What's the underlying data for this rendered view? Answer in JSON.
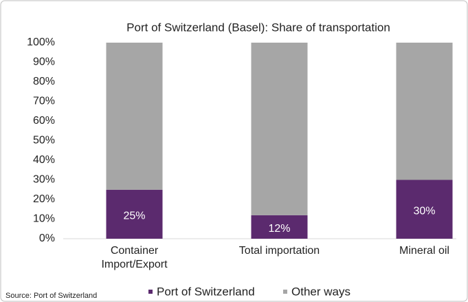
{
  "chart_data": {
    "type": "stacked_bar",
    "title": "Port of Switzerland (Basel): Share of transportation",
    "categories": [
      "Container Import/Export",
      "Total importation",
      "Mineral oil"
    ],
    "series": [
      {
        "name": "Port of Switzerland",
        "color": "#5b2a6e",
        "values": [
          25,
          12,
          30
        ],
        "value_labels": [
          "25%",
          "12%",
          "30%"
        ]
      },
      {
        "name": "Other ways",
        "color": "#a6a6a6",
        "values": [
          75,
          88,
          70
        ]
      }
    ],
    "ylim": [
      0,
      100
    ],
    "yticks": [
      {
        "value": 0,
        "label": "0%"
      },
      {
        "value": 10,
        "label": "10%"
      },
      {
        "value": 20,
        "label": "20%"
      },
      {
        "value": 30,
        "label": "30%"
      },
      {
        "value": 40,
        "label": "40%"
      },
      {
        "value": 50,
        "label": "50%"
      },
      {
        "value": 60,
        "label": "60%"
      },
      {
        "value": 70,
        "label": "70%"
      },
      {
        "value": 80,
        "label": "80%"
      },
      {
        "value": 90,
        "label": "90%"
      },
      {
        "value": 100,
        "label": "100%"
      }
    ],
    "grid": false,
    "legend": "bottom",
    "source": "Source: Port of Switzerland"
  }
}
